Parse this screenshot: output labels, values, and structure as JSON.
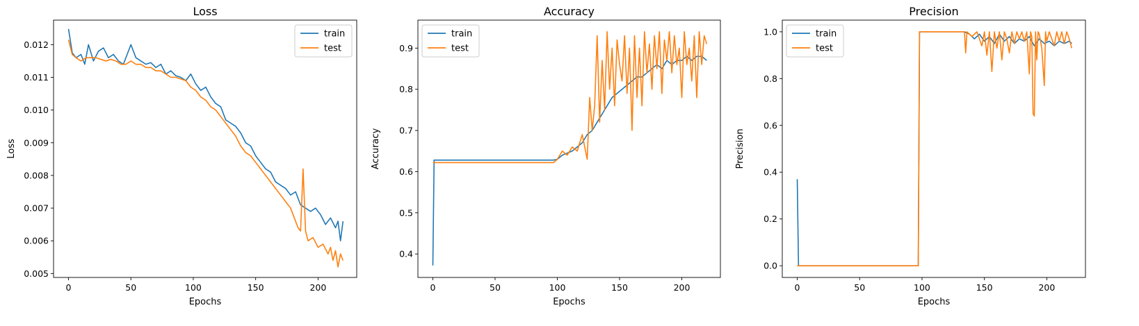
{
  "colors": {
    "train": "#1f77b4",
    "test": "#ff7f0e"
  },
  "chart_data": [
    {
      "type": "line",
      "title": "Loss",
      "xlabel": "Epochs",
      "ylabel": "Loss",
      "xlim": [
        -12,
        231
      ],
      "ylim": [
        0.00488,
        0.01275
      ],
      "xticks": [
        0,
        50,
        100,
        150,
        200
      ],
      "xtick_labels": [
        "0",
        "50",
        "100",
        "150",
        "200"
      ],
      "yticks": [
        0.005,
        0.006,
        0.007,
        0.008,
        0.009,
        0.01,
        0.011,
        0.012
      ],
      "ytick_labels": [
        "0.005",
        "0.006",
        "0.007",
        "0.008",
        "0.009",
        "0.010",
        "0.011",
        "0.012"
      ],
      "legend": "top-right",
      "series": [
        {
          "name": "train",
          "color": "#1f77b4",
          "x": [
            0,
            3,
            6,
            10,
            13,
            16,
            20,
            24,
            28,
            32,
            36,
            40,
            44,
            47,
            50,
            54,
            58,
            62,
            66,
            70,
            74,
            78,
            82,
            86,
            90,
            94,
            98,
            102,
            106,
            110,
            114,
            118,
            122,
            126,
            130,
            134,
            138,
            142,
            146,
            150,
            154,
            158,
            162,
            166,
            170,
            174,
            178,
            182,
            186,
            190,
            194,
            198,
            202,
            206,
            210,
            214,
            216,
            218,
            220
          ],
          "y": [
            0.01248,
            0.01175,
            0.0116,
            0.0117,
            0.0114,
            0.012,
            0.0115,
            0.0118,
            0.0119,
            0.0116,
            0.0117,
            0.0115,
            0.0114,
            0.0117,
            0.012,
            0.0116,
            0.0115,
            0.0114,
            0.01145,
            0.0113,
            0.0114,
            0.0111,
            0.0112,
            0.01105,
            0.011,
            0.0109,
            0.0111,
            0.0108,
            0.0106,
            0.0107,
            0.0104,
            0.0102,
            0.0101,
            0.0097,
            0.0096,
            0.0095,
            0.0093,
            0.009,
            0.0089,
            0.0086,
            0.0084,
            0.0082,
            0.0081,
            0.0078,
            0.0077,
            0.0076,
            0.0074,
            0.0075,
            0.0071,
            0.007,
            0.0069,
            0.007,
            0.0068,
            0.0065,
            0.0067,
            0.0064,
            0.0066,
            0.006,
            0.0066
          ]
        },
        {
          "name": "test",
          "color": "#ff7f0e",
          "x": [
            0,
            3,
            6,
            10,
            14,
            18,
            22,
            26,
            30,
            34,
            38,
            42,
            46,
            50,
            54,
            58,
            62,
            66,
            70,
            74,
            78,
            82,
            86,
            90,
            94,
            98,
            102,
            106,
            110,
            114,
            118,
            122,
            126,
            130,
            134,
            138,
            142,
            146,
            150,
            154,
            158,
            162,
            166,
            170,
            174,
            178,
            182,
            184,
            186,
            188,
            190,
            192,
            196,
            200,
            204,
            208,
            210,
            212,
            214,
            216,
            218,
            220
          ],
          "y": [
            0.01215,
            0.0117,
            0.0116,
            0.0115,
            0.0116,
            0.0116,
            0.0116,
            0.01155,
            0.0115,
            0.01155,
            0.0115,
            0.0114,
            0.0114,
            0.0115,
            0.0114,
            0.0114,
            0.0113,
            0.0113,
            0.0112,
            0.0112,
            0.0111,
            0.011,
            0.011,
            0.01095,
            0.0109,
            0.0107,
            0.0106,
            0.0104,
            0.0103,
            0.0101,
            0.01,
            0.0098,
            0.0096,
            0.0094,
            0.0092,
            0.0089,
            0.0087,
            0.0086,
            0.0084,
            0.0082,
            0.008,
            0.0078,
            0.0076,
            0.0074,
            0.0072,
            0.007,
            0.0066,
            0.0064,
            0.0063,
            0.0082,
            0.0063,
            0.006,
            0.0061,
            0.0058,
            0.0059,
            0.0056,
            0.0058,
            0.0054,
            0.0057,
            0.0052,
            0.0056,
            0.0054
          ]
        }
      ]
    },
    {
      "type": "line",
      "title": "Accuracy",
      "xlabel": "Epochs",
      "ylabel": "Accuracy",
      "xlim": [
        -12,
        231
      ],
      "ylim": [
        0.343,
        0.968
      ],
      "xticks": [
        0,
        50,
        100,
        150,
        200
      ],
      "xtick_labels": [
        "0",
        "50",
        "100",
        "150",
        "200"
      ],
      "yticks": [
        0.4,
        0.5,
        0.6,
        0.7,
        0.8,
        0.9
      ],
      "ytick_labels": [
        "0.4",
        "0.5",
        "0.6",
        "0.7",
        "0.8",
        "0.9"
      ],
      "legend": "top-left",
      "series": [
        {
          "name": "train",
          "color": "#1f77b4",
          "x": [
            0,
            1,
            10,
            50,
            97,
            100,
            104,
            108,
            112,
            116,
            120,
            124,
            128,
            132,
            136,
            140,
            144,
            148,
            152,
            156,
            160,
            164,
            168,
            172,
            176,
            180,
            184,
            188,
            192,
            196,
            200,
            204,
            208,
            212,
            216,
            220
          ],
          "y": [
            0.372,
            0.628,
            0.628,
            0.628,
            0.628,
            0.63,
            0.64,
            0.645,
            0.65,
            0.66,
            0.67,
            0.69,
            0.7,
            0.72,
            0.74,
            0.76,
            0.78,
            0.79,
            0.8,
            0.81,
            0.82,
            0.83,
            0.83,
            0.84,
            0.85,
            0.86,
            0.85,
            0.87,
            0.86,
            0.87,
            0.87,
            0.88,
            0.87,
            0.88,
            0.88,
            0.87
          ]
        },
        {
          "name": "test",
          "color": "#ff7f0e",
          "x": [
            0,
            97,
            100,
            104,
            108,
            112,
            116,
            120,
            124,
            126,
            128,
            130,
            132,
            134,
            136,
            138,
            140,
            142,
            144,
            146,
            148,
            150,
            152,
            154,
            156,
            158,
            160,
            162,
            164,
            166,
            168,
            170,
            172,
            174,
            176,
            178,
            180,
            182,
            184,
            186,
            188,
            190,
            192,
            194,
            196,
            198,
            200,
            202,
            204,
            206,
            208,
            210,
            212,
            214,
            216,
            218,
            220
          ],
          "y": [
            0.622,
            0.622,
            0.63,
            0.65,
            0.64,
            0.66,
            0.65,
            0.69,
            0.63,
            0.78,
            0.7,
            0.76,
            0.93,
            0.72,
            0.87,
            0.75,
            0.94,
            0.8,
            0.9,
            0.76,
            0.92,
            0.86,
            0.82,
            0.93,
            0.79,
            0.9,
            0.7,
            0.93,
            0.78,
            0.9,
            0.76,
            0.94,
            0.84,
            0.91,
            0.8,
            0.93,
            0.85,
            0.94,
            0.79,
            0.92,
            0.87,
            0.94,
            0.84,
            0.93,
            0.86,
            0.9,
            0.78,
            0.94,
            0.86,
            0.9,
            0.82,
            0.93,
            0.78,
            0.94,
            0.86,
            0.93,
            0.91
          ]
        }
      ]
    },
    {
      "type": "line",
      "title": "Precision",
      "xlabel": "Epochs",
      "ylabel": "Precision",
      "xlim": [
        -12,
        231
      ],
      "ylim": [
        -0.05,
        1.05
      ],
      "xticks": [
        0,
        50,
        100,
        150,
        200
      ],
      "xtick_labels": [
        "0",
        "50",
        "100",
        "150",
        "200"
      ],
      "yticks": [
        0.0,
        0.2,
        0.4,
        0.6,
        0.8,
        1.0
      ],
      "ytick_labels": [
        "0.0",
        "0.2",
        "0.4",
        "0.6",
        "0.8",
        "1.0"
      ],
      "legend": "top-left",
      "series": [
        {
          "name": "train",
          "color": "#1f77b4",
          "x": [
            0,
            1,
            97,
            98,
            134,
            138,
            142,
            146,
            150,
            154,
            158,
            162,
            166,
            170,
            174,
            178,
            182,
            186,
            190,
            194,
            198,
            202,
            206,
            210,
            214,
            218,
            220
          ],
          "y": [
            0.37,
            0.0,
            0.0,
            1.0,
            1.0,
            0.99,
            0.97,
            0.99,
            0.96,
            0.98,
            0.95,
            0.99,
            0.96,
            0.98,
            0.95,
            0.97,
            0.96,
            0.98,
            0.94,
            0.97,
            0.95,
            0.96,
            0.94,
            0.96,
            0.95,
            0.96,
            0.95
          ]
        },
        {
          "name": "test",
          "color": "#ff7f0e",
          "x": [
            0,
            97,
            98,
            134,
            135,
            136,
            140,
            144,
            148,
            150,
            152,
            154,
            156,
            158,
            160,
            162,
            164,
            166,
            168,
            170,
            172,
            174,
            176,
            178,
            180,
            182,
            184,
            186,
            187,
            188,
            189,
            190,
            191,
            192,
            193,
            194,
            196,
            198,
            199,
            200,
            202,
            204,
            206,
            208,
            210,
            212,
            214,
            216,
            218,
            220
          ],
          "y": [
            0.0,
            0.0,
            1.0,
            1.0,
            0.91,
            1.0,
            0.98,
            1.0,
            0.94,
            1.0,
            0.9,
            1.0,
            0.83,
            1.0,
            0.93,
            1.0,
            0.88,
            1.0,
            0.97,
            0.91,
            1.0,
            0.95,
            1.0,
            0.97,
            1.0,
            0.96,
            1.0,
            0.82,
            1.0,
            0.98,
            0.65,
            0.64,
            1.0,
            0.88,
            1.0,
            0.99,
            0.93,
            0.77,
            1.0,
            0.96,
            1.0,
            0.97,
            0.94,
            1.0,
            0.96,
            1.0,
            0.95,
            1.0,
            0.97,
            0.93
          ]
        }
      ]
    }
  ]
}
